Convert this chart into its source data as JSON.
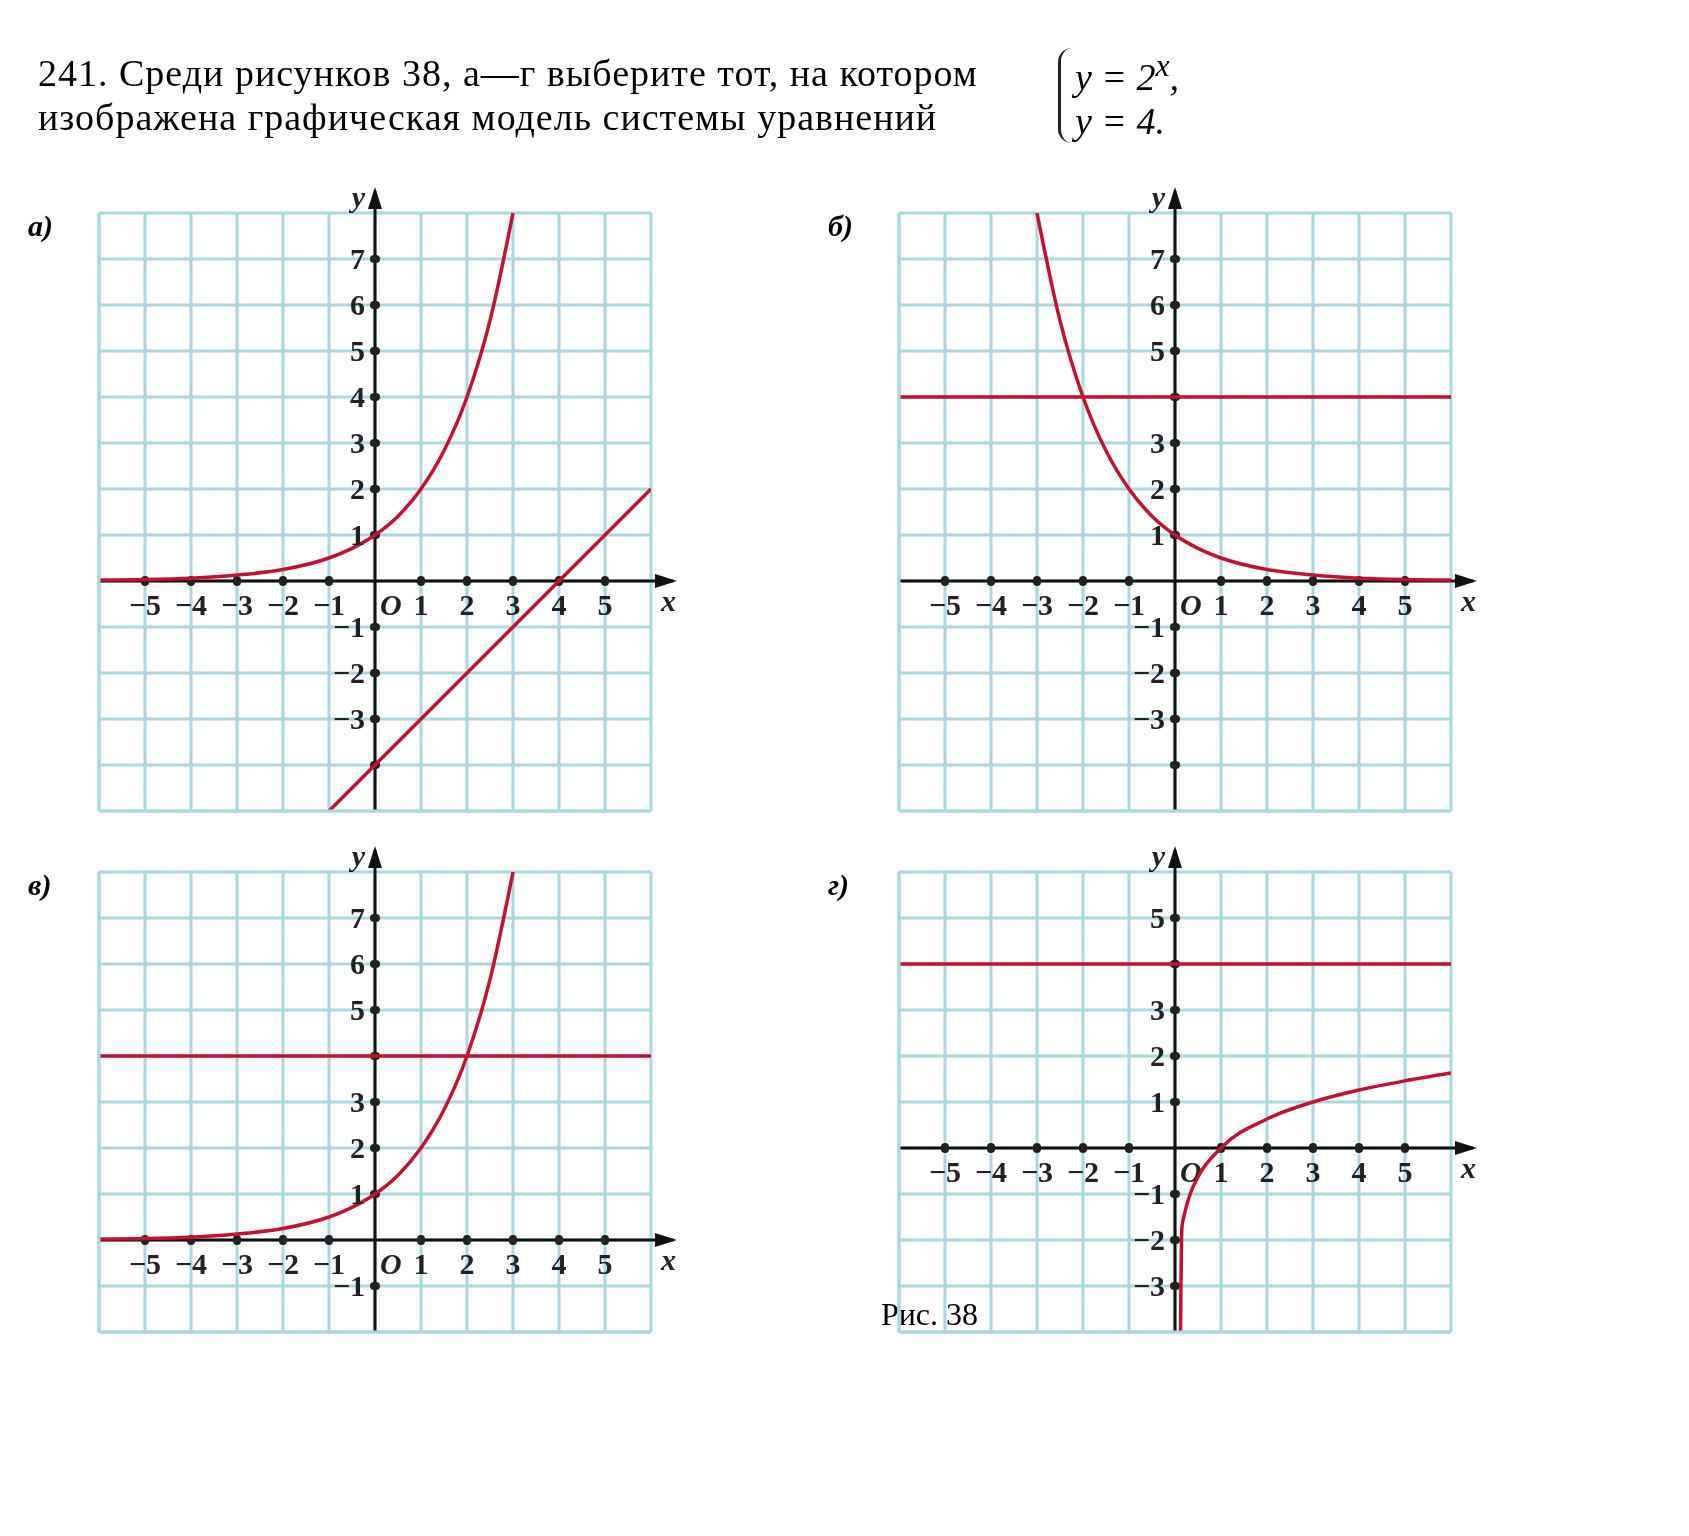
{
  "chart_data": [
    {
      "type": "line",
      "title": "а)",
      "subtitle": "241. Среди рисунков 38, а—г выберите тот, на котором изображена графическая модель системы уравнений",
      "xlabel": "x",
      "ylabel": "y",
      "grid": true,
      "legend": false,
      "marker": "none",
      "annotations": [
        "y = 2$^{x}$,",
        "y = 4.",
        "O"
      ],
      "xlim": [
        -6,
        6
      ],
      "ylim": [
        -5,
        8
      ],
      "xticks": [
        {
          "value": -6,
          "label": null
        },
        {
          "value": -5,
          "label": "−5"
        },
        {
          "value": -4,
          "label": "−4"
        },
        {
          "value": -3,
          "label": "−3"
        },
        {
          "value": -2,
          "label": "−2"
        },
        {
          "value": -1,
          "label": "−1"
        },
        {
          "value": 0,
          "label": null
        },
        1,
        2,
        3,
        4,
        5,
        {
          "value": 6,
          "label": null
        }
      ],
      "yticks": [
        {
          "value": -5,
          "label": null
        },
        {
          "value": -4,
          "label": null
        },
        {
          "value": -3,
          "label": "−3"
        },
        {
          "value": -2,
          "label": "−2"
        },
        {
          "value": -1,
          "label": "−1"
        },
        {
          "value": 0,
          "label": null
        },
        1,
        2,
        3,
        4,
        5,
        6,
        7,
        {
          "value": 8,
          "label": null
        }
      ],
      "series": [
        {
          "color": "#c8102e",
          "x": [
            -6,
            -5,
            -4,
            -3,
            -2,
            -1,
            -0.5,
            0,
            0.5,
            1,
            1.5,
            2,
            2.5,
            3
          ],
          "values": [
            0.02,
            0.03,
            0.06,
            0.13,
            0.25,
            0.5,
            0.71,
            1,
            1.41,
            2,
            2.83,
            4,
            5.66,
            8
          ]
        },
        {
          "color": "#c8102e",
          "x": [
            -1,
            6
          ],
          "values": [
            -5,
            2
          ]
        }
      ]
    },
    {
      "type": "line",
      "title": "б)",
      "xlabel": "x",
      "ylabel": "y",
      "grid": true,
      "legend": false,
      "marker": "none",
      "annotations": [
        "O"
      ],
      "xlim": [
        -6,
        6
      ],
      "ylim": [
        -5,
        8
      ],
      "xticks": [
        {
          "value": -6,
          "label": null
        },
        {
          "value": -5,
          "label": "−5"
        },
        {
          "value": -4,
          "label": "−4"
        },
        {
          "value": -3,
          "label": "−3"
        },
        {
          "value": -2,
          "label": "−2"
        },
        {
          "value": -1,
          "label": "−1"
        },
        {
          "value": 0,
          "label": null
        },
        1,
        2,
        3,
        4,
        5,
        {
          "value": 6,
          "label": null
        }
      ],
      "yticks": [
        {
          "value": -5,
          "label": null
        },
        {
          "value": -4,
          "label": null
        },
        {
          "value": -3,
          "label": "−3"
        },
        {
          "value": -2,
          "label": "−2"
        },
        {
          "value": -1,
          "label": "−1"
        },
        {
          "value": 0,
          "label": null
        },
        1,
        2,
        3,
        {
          "value": 4,
          "label": null
        },
        5,
        6,
        7,
        {
          "value": 8,
          "label": null
        }
      ],
      "series": [
        {
          "color": "#c8102e",
          "x": [
            -3,
            -2.5,
            -2,
            -1.5,
            -1,
            -0.5,
            0,
            0.5,
            1,
            2,
            3,
            4,
            5,
            6
          ],
          "values": [
            8,
            5.66,
            4,
            2.83,
            2,
            1.41,
            1,
            0.71,
            0.5,
            0.25,
            0.13,
            0.06,
            0.03,
            0.02
          ]
        },
        {
          "color": "#c8102e",
          "x": [
            -6,
            6
          ],
          "values": [
            4,
            4
          ]
        }
      ]
    },
    {
      "type": "line",
      "title": "в)",
      "xlabel": "x",
      "ylabel": "y",
      "grid": true,
      "legend": false,
      "marker": "none",
      "annotations": [
        "Рис. 38",
        "O"
      ],
      "xlim": [
        -6,
        6
      ],
      "ylim": [
        -2,
        8
      ],
      "xticks": [
        {
          "value": -6,
          "label": null
        },
        {
          "value": -5,
          "label": "−5"
        },
        {
          "value": -4,
          "label": "−4"
        },
        {
          "value": -3,
          "label": "−3"
        },
        {
          "value": -2,
          "label": "−2"
        },
        {
          "value": -1,
          "label": "−1"
        },
        {
          "value": 0,
          "label": null
        },
        1,
        2,
        3,
        4,
        5,
        {
          "value": 6,
          "label": null
        }
      ],
      "yticks": [
        {
          "value": -2,
          "label": null
        },
        {
          "value": -1,
          "label": "−1"
        },
        {
          "value": 0,
          "label": null
        },
        1,
        2,
        3,
        {
          "value": 4,
          "label": null
        },
        5,
        6,
        7,
        {
          "value": 8,
          "label": null
        }
      ],
      "series": [
        {
          "color": "#c8102e",
          "x": [
            -6,
            -5,
            -4,
            -3,
            -2,
            -1,
            -0.5,
            0,
            0.5,
            1,
            1.5,
            2,
            2.5,
            3
          ],
          "values": [
            0.02,
            0.03,
            0.06,
            0.13,
            0.25,
            0.5,
            0.71,
            1,
            1.41,
            2,
            2.83,
            4,
            5.66,
            8
          ]
        },
        {
          "color": "#c8102e",
          "x": [
            -6,
            6
          ],
          "values": [
            4,
            4
          ]
        }
      ]
    },
    {
      "type": "line",
      "title": "г)",
      "xlabel": "x",
      "ylabel": "y",
      "grid": true,
      "legend": false,
      "marker": "none",
      "annotations": [
        "O"
      ],
      "xlim": [
        -6,
        6
      ],
      "ylim": [
        -4,
        6
      ],
      "xticks": [
        {
          "value": -6,
          "label": null
        },
        {
          "value": -5,
          "label": "−5"
        },
        {
          "value": -4,
          "label": "−4"
        },
        {
          "value": -3,
          "label": "−3"
        },
        {
          "value": -2,
          "label": "−2"
        },
        {
          "value": -1,
          "label": "−1"
        },
        {
          "value": 0,
          "label": null
        },
        1,
        2,
        3,
        4,
        5,
        {
          "value": 6,
          "label": null
        }
      ],
      "yticks": [
        {
          "value": -4,
          "label": null
        },
        {
          "value": -3,
          "label": "−3"
        },
        {
          "value": -2,
          "label": "−2"
        },
        {
          "value": -1,
          "label": "−1"
        },
        {
          "value": 0,
          "label": null
        },
        1,
        2,
        3,
        {
          "value": 4,
          "label": null
        },
        5,
        {
          "value": 6,
          "label": null
        }
      ],
      "series": [
        {
          "color": "#c8102e",
          "x": [
            0.12,
            0.15,
            0.2,
            0.33,
            0.5,
            1,
            2,
            3,
            4,
            5,
            6
          ],
          "values": [
            -4,
            -1.73,
            -1.46,
            -1,
            -0.63,
            0,
            0.63,
            1,
            1.26,
            1.46,
            1.63
          ]
        },
        {
          "color": "#c8102e",
          "x": [
            -6,
            6
          ],
          "values": [
            4,
            4
          ]
        }
      ]
    }
  ]
}
